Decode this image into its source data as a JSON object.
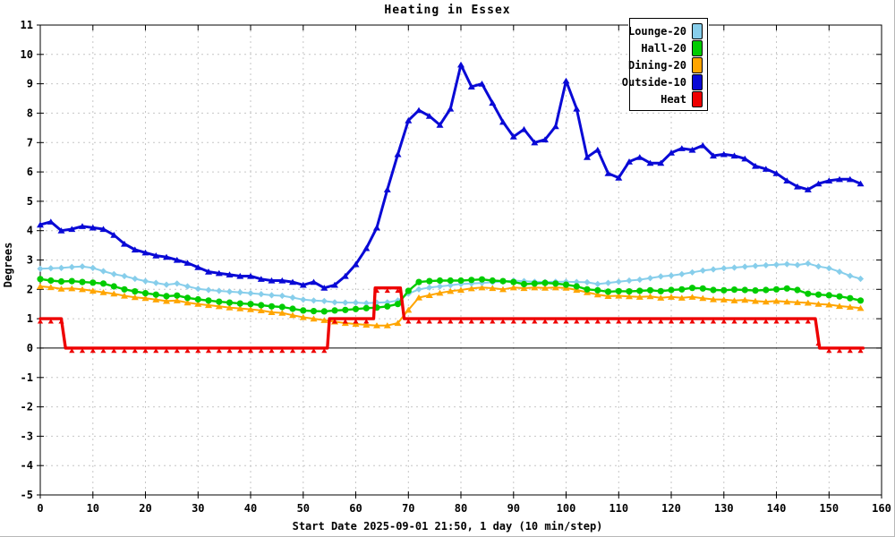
{
  "chart_data": {
    "type": "line",
    "title": "Heating in Essex",
    "xlabel": "Start Date 2025-09-01 21:50, 1 day (10 min/step)",
    "ylabel": "Degrees",
    "xlim": [
      0,
      160
    ],
    "ylim": [
      -5,
      11
    ],
    "x_tick_step": 10,
    "y_tick_step": 1,
    "grid": true,
    "grid_color": "#c6c6c6",
    "zero_line": true,
    "legend_position": "top-right",
    "x": [
      0,
      2,
      4,
      6,
      8,
      10,
      12,
      14,
      16,
      18,
      20,
      22,
      24,
      26,
      28,
      30,
      32,
      34,
      36,
      38,
      40,
      42,
      44,
      46,
      48,
      50,
      52,
      54,
      56,
      58,
      60,
      62,
      64,
      66,
      68,
      70,
      72,
      74,
      76,
      78,
      80,
      82,
      84,
      86,
      88,
      90,
      92,
      94,
      96,
      98,
      100,
      102,
      104,
      106,
      108,
      110,
      112,
      114,
      116,
      118,
      120,
      122,
      124,
      126,
      128,
      130,
      132,
      134,
      136,
      138,
      140,
      142,
      144,
      146,
      148,
      150,
      152,
      154,
      156
    ],
    "series": [
      {
        "name": "Lounge-20",
        "color": "#87CEEB",
        "marker": "diamond",
        "line_width": 2,
        "values": [
          2.7,
          2.72,
          2.73,
          2.76,
          2.78,
          2.73,
          2.62,
          2.52,
          2.45,
          2.36,
          2.28,
          2.22,
          2.16,
          2.2,
          2.1,
          2.02,
          1.98,
          1.95,
          1.92,
          1.9,
          1.87,
          1.84,
          1.8,
          1.78,
          1.72,
          1.65,
          1.62,
          1.6,
          1.56,
          1.55,
          1.55,
          1.53,
          1.55,
          1.56,
          1.62,
          1.85,
          2.0,
          2.06,
          2.1,
          2.14,
          2.18,
          2.2,
          2.22,
          2.24,
          2.27,
          2.3,
          2.28,
          2.26,
          2.25,
          2.26,
          2.26,
          2.25,
          2.24,
          2.18,
          2.22,
          2.26,
          2.3,
          2.33,
          2.38,
          2.44,
          2.47,
          2.52,
          2.58,
          2.64,
          2.68,
          2.72,
          2.74,
          2.77,
          2.8,
          2.82,
          2.84,
          2.86,
          2.83,
          2.88,
          2.78,
          2.72,
          2.6,
          2.46,
          2.36
        ]
      },
      {
        "name": "Hall-20",
        "color": "#00CC00",
        "marker": "circle",
        "line_width": 2.4,
        "values": [
          2.35,
          2.3,
          2.27,
          2.28,
          2.25,
          2.23,
          2.2,
          2.1,
          2.0,
          1.93,
          1.87,
          1.82,
          1.77,
          1.79,
          1.71,
          1.66,
          1.62,
          1.58,
          1.55,
          1.52,
          1.5,
          1.46,
          1.42,
          1.4,
          1.34,
          1.28,
          1.26,
          1.25,
          1.28,
          1.3,
          1.33,
          1.36,
          1.38,
          1.42,
          1.5,
          1.95,
          2.25,
          2.28,
          2.3,
          2.3,
          2.3,
          2.32,
          2.34,
          2.3,
          2.28,
          2.25,
          2.18,
          2.2,
          2.22,
          2.2,
          2.16,
          2.1,
          2.0,
          1.97,
          1.92,
          1.94,
          1.93,
          1.95,
          1.97,
          1.94,
          1.98,
          2.0,
          2.05,
          2.03,
          1.98,
          1.97,
          1.99,
          1.98,
          1.96,
          1.98,
          2.0,
          2.03,
          1.98,
          1.85,
          1.82,
          1.8,
          1.76,
          1.7,
          1.62
        ]
      },
      {
        "name": "Dining-20",
        "color": "#FFA500",
        "marker": "triangle",
        "line_width": 2,
        "values": [
          2.1,
          2.07,
          2.02,
          2.03,
          2.0,
          1.95,
          1.9,
          1.85,
          1.78,
          1.73,
          1.7,
          1.65,
          1.6,
          1.62,
          1.55,
          1.5,
          1.46,
          1.42,
          1.38,
          1.35,
          1.32,
          1.28,
          1.22,
          1.2,
          1.12,
          1.05,
          1.0,
          0.95,
          0.9,
          0.85,
          0.82,
          0.79,
          0.77,
          0.77,
          0.85,
          1.3,
          1.72,
          1.8,
          1.88,
          1.94,
          1.98,
          2.03,
          2.06,
          2.04,
          2.0,
          2.06,
          2.04,
          2.06,
          2.05,
          2.06,
          2.05,
          1.98,
          1.9,
          1.82,
          1.77,
          1.78,
          1.76,
          1.74,
          1.76,
          1.71,
          1.74,
          1.71,
          1.74,
          1.7,
          1.66,
          1.65,
          1.62,
          1.64,
          1.6,
          1.58,
          1.6,
          1.58,
          1.56,
          1.54,
          1.5,
          1.48,
          1.43,
          1.4,
          1.36
        ]
      },
      {
        "name": "Outside-10",
        "color": "#0909D6",
        "marker": "triangle",
        "line_width": 3,
        "values": [
          4.2,
          4.3,
          4.0,
          4.05,
          4.15,
          4.1,
          4.05,
          3.85,
          3.55,
          3.35,
          3.25,
          3.15,
          3.1,
          3.0,
          2.9,
          2.75,
          2.6,
          2.55,
          2.5,
          2.45,
          2.45,
          2.35,
          2.3,
          2.3,
          2.25,
          2.15,
          2.25,
          2.05,
          2.15,
          2.45,
          2.85,
          3.4,
          4.1,
          5.4,
          6.6,
          7.75,
          8.1,
          7.9,
          7.6,
          8.15,
          9.65,
          8.9,
          9.0,
          8.35,
          7.7,
          7.2,
          7.45,
          7.0,
          7.1,
          7.55,
          9.1,
          8.15,
          6.5,
          6.75,
          5.95,
          5.8,
          6.35,
          6.5,
          6.3,
          6.3,
          6.65,
          6.8,
          6.75,
          6.9,
          6.55,
          6.6,
          6.55,
          6.45,
          6.2,
          6.1,
          5.95,
          5.7,
          5.5,
          5.4,
          5.6,
          5.7,
          5.75,
          5.75,
          5.6
        ]
      },
      {
        "name": "Heat",
        "color": "#EE0000",
        "marker": "triangle",
        "line_width": 3.4,
        "points": [
          [
            0,
            1
          ],
          [
            4,
            1
          ],
          [
            4.8,
            0
          ],
          [
            54.6,
            0
          ],
          [
            55,
            1
          ],
          [
            63.4,
            1
          ],
          [
            63.7,
            2.05
          ],
          [
            68.5,
            2.05
          ],
          [
            69.2,
            1
          ],
          [
            147.4,
            1
          ],
          [
            148.2,
            0
          ],
          [
            156.5,
            0
          ]
        ]
      }
    ]
  }
}
